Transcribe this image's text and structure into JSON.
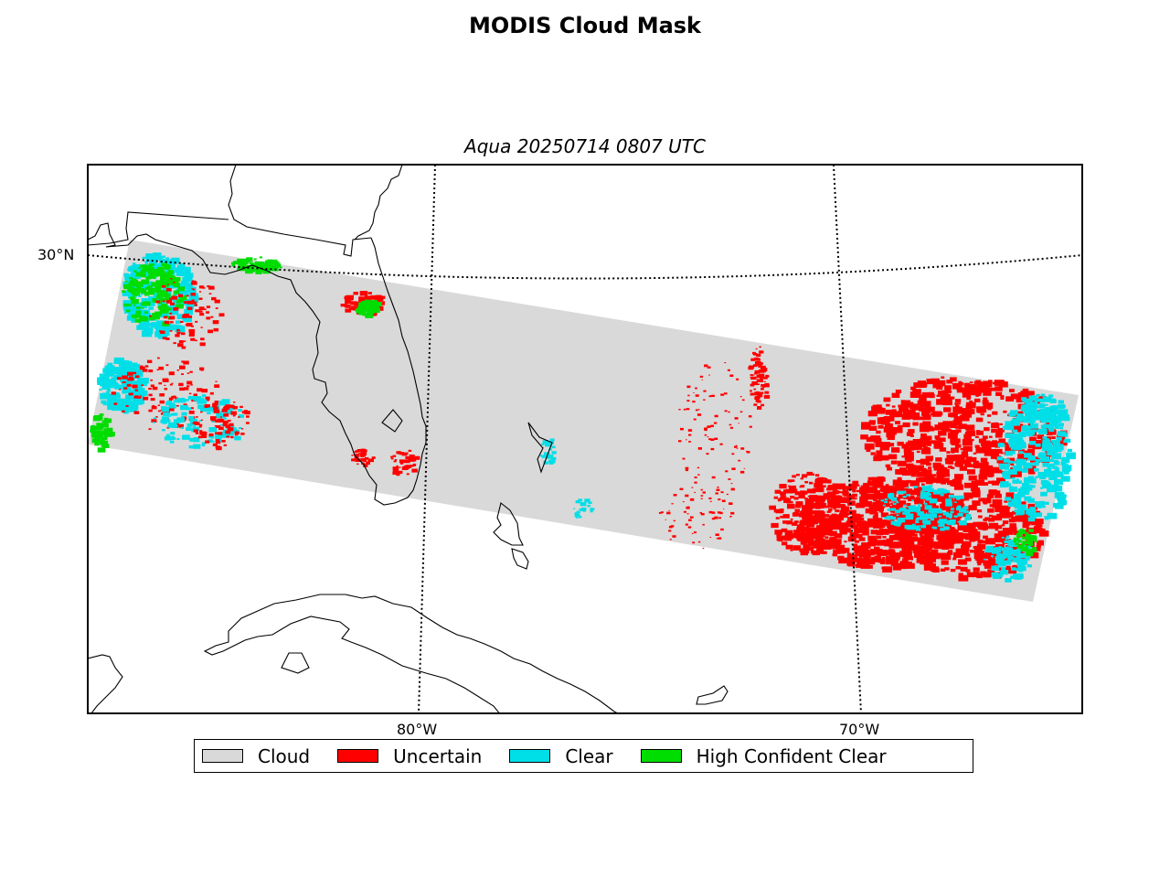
{
  "title": "MODIS Cloud Mask",
  "subtitle": "Aqua 20250714 0807 UTC",
  "axes": {
    "lat_labels": [
      "30°N"
    ],
    "lon_labels": [
      "80°W",
      "70°W"
    ]
  },
  "colors": {
    "cloud": "#d9d9d9",
    "uncertain": "#ff0000",
    "clear": "#00dfe8",
    "high_confident_clear": "#00dd00",
    "coast": "#000000"
  },
  "legend": [
    {
      "label": "Cloud",
      "color": "#d9d9d9"
    },
    {
      "label": "Uncertain",
      "color": "#ff0000"
    },
    {
      "label": "Clear",
      "color": "#00dfe8"
    },
    {
      "label": "High Confident Clear",
      "color": "#00dd00"
    }
  ]
}
